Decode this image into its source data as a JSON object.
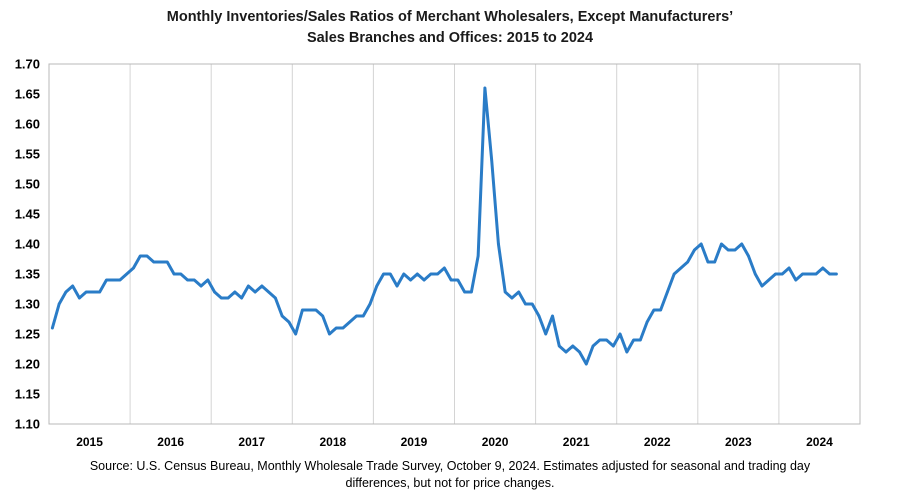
{
  "chart_data": {
    "type": "line",
    "title_lines": [
      "Monthly Inventories/Sales Ratios of Merchant Wholesalers, Except Manufacturers’",
      "Sales Branches and Offices: 2015 to 2024"
    ],
    "source_lines": [
      "Source: U.S. Census Bureau, Monthly Wholesale Trade Survey, October 9, 2024. Estimates adjusted for seasonal and trading day",
      "differences, but not for price changes."
    ],
    "xlabel": "",
    "ylabel": "",
    "ylim": [
      1.1,
      1.7
    ],
    "yticks": [
      "1.10",
      "1.15",
      "1.20",
      "1.25",
      "1.30",
      "1.35",
      "1.40",
      "1.45",
      "1.50",
      "1.55",
      "1.60",
      "1.65",
      "1.70"
    ],
    "year_labels": [
      "2015",
      "2016",
      "2017",
      "2018",
      "2019",
      "2020",
      "2021",
      "2022",
      "2023",
      "2024"
    ],
    "start": "2015-01",
    "grid": "vertical lines between years",
    "line_color": "#2a7cc7",
    "series": [
      {
        "values": [
          1.26,
          1.3,
          1.32,
          1.33,
          1.31,
          1.32,
          1.32,
          1.32,
          1.34,
          1.34,
          1.34,
          1.35,
          1.36,
          1.38,
          1.38,
          1.37,
          1.37,
          1.37,
          1.35,
          1.35,
          1.34,
          1.34,
          1.33,
          1.34,
          1.32,
          1.31,
          1.31,
          1.32,
          1.31,
          1.33,
          1.32,
          1.33,
          1.32,
          1.31,
          1.28,
          1.27,
          1.25,
          1.29,
          1.29,
          1.29,
          1.28,
          1.25,
          1.26,
          1.26,
          1.27,
          1.28,
          1.28,
          1.3,
          1.33,
          1.35,
          1.35,
          1.33,
          1.35,
          1.34,
          1.35,
          1.34,
          1.35,
          1.35,
          1.36,
          1.34,
          1.34,
          1.32,
          1.32,
          1.38,
          1.66,
          1.54,
          1.4,
          1.32,
          1.31,
          1.32,
          1.3,
          1.3,
          1.28,
          1.25,
          1.28,
          1.23,
          1.22,
          1.23,
          1.22,
          1.2,
          1.23,
          1.24,
          1.24,
          1.23,
          1.25,
          1.22,
          1.24,
          1.24,
          1.27,
          1.29,
          1.29,
          1.32,
          1.35,
          1.36,
          1.37,
          1.39,
          1.4,
          1.37,
          1.37,
          1.4,
          1.39,
          1.39,
          1.4,
          1.38,
          1.35,
          1.33,
          1.34,
          1.35,
          1.35,
          1.36,
          1.34,
          1.35,
          1.35,
          1.35,
          1.36,
          1.35,
          1.35
        ]
      }
    ]
  }
}
